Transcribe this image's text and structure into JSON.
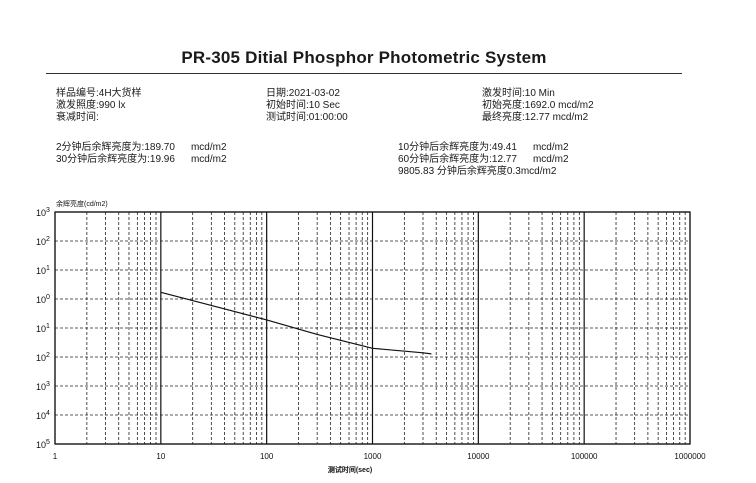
{
  "title": "PR-305 Ditial Phosphor Photometric System",
  "info": {
    "col1": [
      "样品编号:4H大货样",
      "激发照度:990 lx",
      "衰减时间:"
    ],
    "col2": [
      "日期:2021-03-02",
      "初始时间:10 Sec",
      "测试时间:01:00:00"
    ],
    "col3": [
      "激发时间:10 Min",
      "初始亮度:1692.0 mcd/m2",
      "最终亮度:12.77 mcd/m2"
    ]
  },
  "results": {
    "left": [
      {
        "label": "2分钟后余辉亮度为:",
        "value": "189.70",
        "unit": "mcd/m2"
      },
      {
        "label": "30分钟后余辉亮度为:",
        "value": "19.96",
        "unit": "mcd/m2"
      }
    ],
    "right": [
      {
        "label": "10分钟后余辉亮度为:",
        "value": "49.41",
        "unit": "mcd/m2"
      },
      {
        "label": "60分钟后余辉亮度为:",
        "value": "12.77",
        "unit": "mcd/m2"
      }
    ],
    "extra": "9805.83 分钟后余辉亮度0.3mcd/m2"
  },
  "chart_data": {
    "type": "line",
    "ylabel": "余辉亮度(cd/m2)",
    "xlabel": "测试时间(sec)",
    "xscale": "log",
    "yscale": "log",
    "xlim": [
      1,
      1000000
    ],
    "ylim_exp": [
      -5,
      3
    ],
    "x_ticks": [
      "1",
      "10",
      "100",
      "1000",
      "10000",
      "100000",
      "1000000"
    ],
    "y_ticks": [
      {
        "base": "10",
        "exp": "3"
      },
      {
        "base": "10",
        "exp": "2"
      },
      {
        "base": "10",
        "exp": "1"
      },
      {
        "base": "10",
        "exp": "0"
      },
      {
        "base": "10",
        "exp": "1"
      },
      {
        "base": "10",
        "exp": "2"
      },
      {
        "base": "10",
        "exp": "3"
      },
      {
        "base": "10",
        "exp": "4"
      },
      {
        "base": "10",
        "exp": "5"
      }
    ],
    "grid": true,
    "series": [
      {
        "x": [
          10,
          30,
          100,
          300,
          1000,
          3000,
          3600
        ],
        "y": [
          1.7,
          0.6,
          0.19,
          0.06,
          0.02,
          0.014,
          0.0128
        ]
      }
    ]
  }
}
